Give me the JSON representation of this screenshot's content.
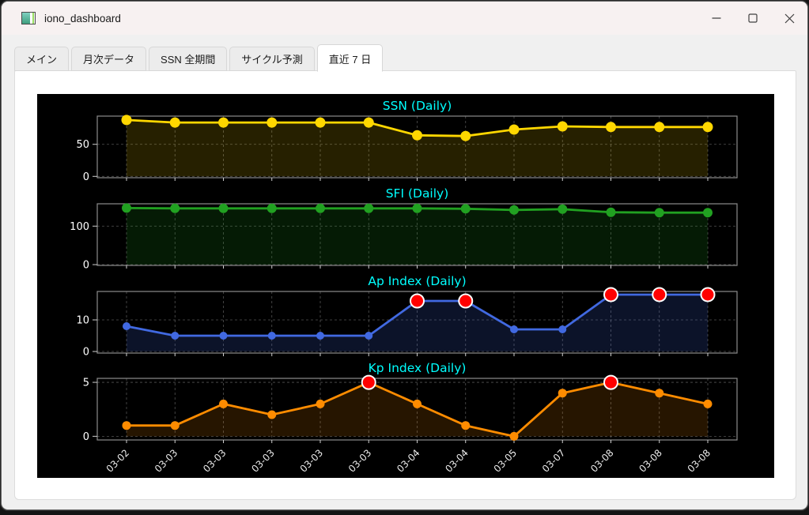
{
  "window": {
    "title": "iono_dashboard"
  },
  "titlebar_icons": {
    "app": "image-icon",
    "minimize": "minimize-icon",
    "maximize": "maximize-icon",
    "close": "close-icon"
  },
  "tabs": [
    {
      "label": "メイン",
      "name": "tab-main",
      "active": false
    },
    {
      "label": "月次データ",
      "name": "tab-monthly-data",
      "active": false
    },
    {
      "label": "SSN 全期間",
      "name": "tab-ssn-all-period",
      "active": false
    },
    {
      "label": "サイクル予測",
      "name": "tab-cycle-forecast",
      "active": false
    },
    {
      "label": "直近 7 日",
      "name": "tab-last-7-days",
      "active": true
    }
  ],
  "chart_style": {
    "background": "#000000",
    "title_color": "#00ffff",
    "tick_label_color": "#ffffff",
    "grid_color": "#6f6f6f",
    "event_color": "#ff0000"
  },
  "chart_data": [
    {
      "type": "line",
      "name": "chart-ssn-daily",
      "title": "SSN (Daily)",
      "categories": [
        "03-02",
        "03-03",
        "03-03",
        "03-03",
        "03-03",
        "03-03",
        "03-04",
        "03-04",
        "03-05",
        "03-07",
        "03-08",
        "03-08",
        "03-08"
      ],
      "values": [
        88,
        84,
        84,
        84,
        84,
        84,
        64,
        63,
        73,
        78,
        77,
        77,
        77
      ],
      "line_color": "#ffd700",
      "fill_color": "rgba(255,215,0,0.15)",
      "yticks": [
        0,
        50
      ],
      "ylim": [
        -2.1,
        94
      ],
      "event_indices": [],
      "show_x_labels": false,
      "grid": true
    },
    {
      "type": "line",
      "name": "chart-sfi-daily",
      "title": "SFI (Daily)",
      "categories": [
        "03-02",
        "03-03",
        "03-03",
        "03-03",
        "03-03",
        "03-03",
        "03-04",
        "03-04",
        "03-05",
        "03-07",
        "03-08",
        "03-08",
        "03-08"
      ],
      "values": [
        147,
        146,
        146,
        146,
        146,
        146,
        146,
        145,
        142,
        144,
        136,
        135,
        135
      ],
      "line_color": "#21a121",
      "fill_color": "rgba(30,150,30,0.18)",
      "yticks": [
        0,
        100
      ],
      "ylim": [
        -2,
        158
      ],
      "event_indices": [],
      "show_x_labels": false,
      "grid": true
    },
    {
      "type": "line",
      "name": "chart-ap-index-daily",
      "title": "Ap Index (Daily)",
      "categories": [
        "03-02",
        "03-03",
        "03-03",
        "03-03",
        "03-03",
        "03-03",
        "03-04",
        "03-04",
        "03-05",
        "03-07",
        "03-08",
        "03-08",
        "03-08"
      ],
      "values": [
        8,
        5,
        5,
        5,
        5,
        5,
        16,
        16,
        7,
        7,
        18,
        18,
        18
      ],
      "line_color": "#4169e1",
      "fill_color": "rgba(65,105,225,0.18)",
      "yticks": [
        0,
        10
      ],
      "ylim": [
        -0.5,
        19
      ],
      "event_indices": [
        6,
        7,
        10,
        11,
        12
      ],
      "show_x_labels": false,
      "grid": true
    },
    {
      "type": "line",
      "name": "chart-kp-index-daily",
      "title": "Kp Index (Daily)",
      "categories": [
        "03-02",
        "03-03",
        "03-03",
        "03-03",
        "03-03",
        "03-03",
        "03-04",
        "03-04",
        "03-05",
        "03-07",
        "03-08",
        "03-08",
        "03-08"
      ],
      "values": [
        1,
        1,
        3,
        2,
        3,
        5,
        3,
        1,
        0,
        4,
        5,
        4,
        3
      ],
      "line_color": "#ff8c00",
      "fill_color": "rgba(255,140,0,0.15)",
      "yticks": [
        0,
        5
      ],
      "ylim": [
        -0.34,
        5.37
      ],
      "event_indices": [
        5,
        10
      ],
      "show_x_labels": true,
      "grid": true
    }
  ]
}
